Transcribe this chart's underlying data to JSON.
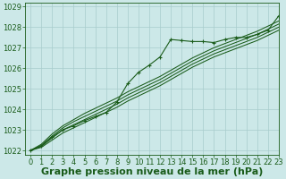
{
  "background_color": "#cce8e8",
  "grid_color": "#a8cccc",
  "line_color": "#1a5c1a",
  "xlabel": "Graphe pression niveau de la mer (hPa)",
  "xlabel_fontsize": 8,
  "tick_fontsize": 6,
  "xlim": [
    -0.5,
    23
  ],
  "ylim": [
    1021.8,
    1029.2
  ],
  "yticks": [
    1022,
    1023,
    1024,
    1025,
    1026,
    1027,
    1028,
    1029
  ],
  "xticks": [
    0,
    1,
    2,
    3,
    4,
    5,
    6,
    7,
    8,
    9,
    10,
    11,
    12,
    13,
    14,
    15,
    16,
    17,
    18,
    19,
    20,
    21,
    22,
    23
  ],
  "bundle": [
    [
      1022.0,
      1022.15,
      1022.5,
      1022.85,
      1023.1,
      1023.35,
      1023.6,
      1023.85,
      1024.1,
      1024.4,
      1024.65,
      1024.9,
      1025.15,
      1025.45,
      1025.75,
      1026.05,
      1026.3,
      1026.55,
      1026.75,
      1026.95,
      1027.15,
      1027.35,
      1027.6,
      1027.85
    ],
    [
      1022.0,
      1022.2,
      1022.6,
      1023.0,
      1023.25,
      1023.5,
      1023.75,
      1024.0,
      1024.25,
      1024.55,
      1024.8,
      1025.05,
      1025.3,
      1025.6,
      1025.9,
      1026.2,
      1026.45,
      1026.7,
      1026.9,
      1027.1,
      1027.3,
      1027.5,
      1027.75,
      1028.0
    ],
    [
      1022.0,
      1022.25,
      1022.7,
      1023.1,
      1023.4,
      1023.65,
      1023.9,
      1024.15,
      1024.4,
      1024.7,
      1024.95,
      1025.2,
      1025.45,
      1025.75,
      1026.05,
      1026.35,
      1026.6,
      1026.85,
      1027.05,
      1027.25,
      1027.45,
      1027.65,
      1027.9,
      1028.15
    ],
    [
      1022.0,
      1022.3,
      1022.8,
      1023.2,
      1023.5,
      1023.8,
      1024.05,
      1024.3,
      1024.55,
      1024.85,
      1025.1,
      1025.35,
      1025.6,
      1025.9,
      1026.2,
      1026.5,
      1026.75,
      1027.0,
      1027.2,
      1027.4,
      1027.6,
      1027.8,
      1028.05,
      1028.3
    ]
  ],
  "main_markers": [
    0,
    1,
    2,
    3,
    4,
    5,
    6,
    7,
    8,
    9,
    10,
    11,
    12,
    13,
    14,
    15,
    16,
    17,
    18,
    19,
    20,
    21,
    22,
    23
  ],
  "main_line": [
    1022.0,
    1022.2,
    1022.65,
    1023.0,
    1023.2,
    1023.45,
    1023.65,
    1023.85,
    1024.35,
    1025.25,
    1025.8,
    1026.15,
    1026.55,
    1027.4,
    1027.35,
    1027.3,
    1027.3,
    1027.25,
    1027.4,
    1027.5,
    1027.5,
    1027.65,
    1027.85,
    1028.55
  ]
}
